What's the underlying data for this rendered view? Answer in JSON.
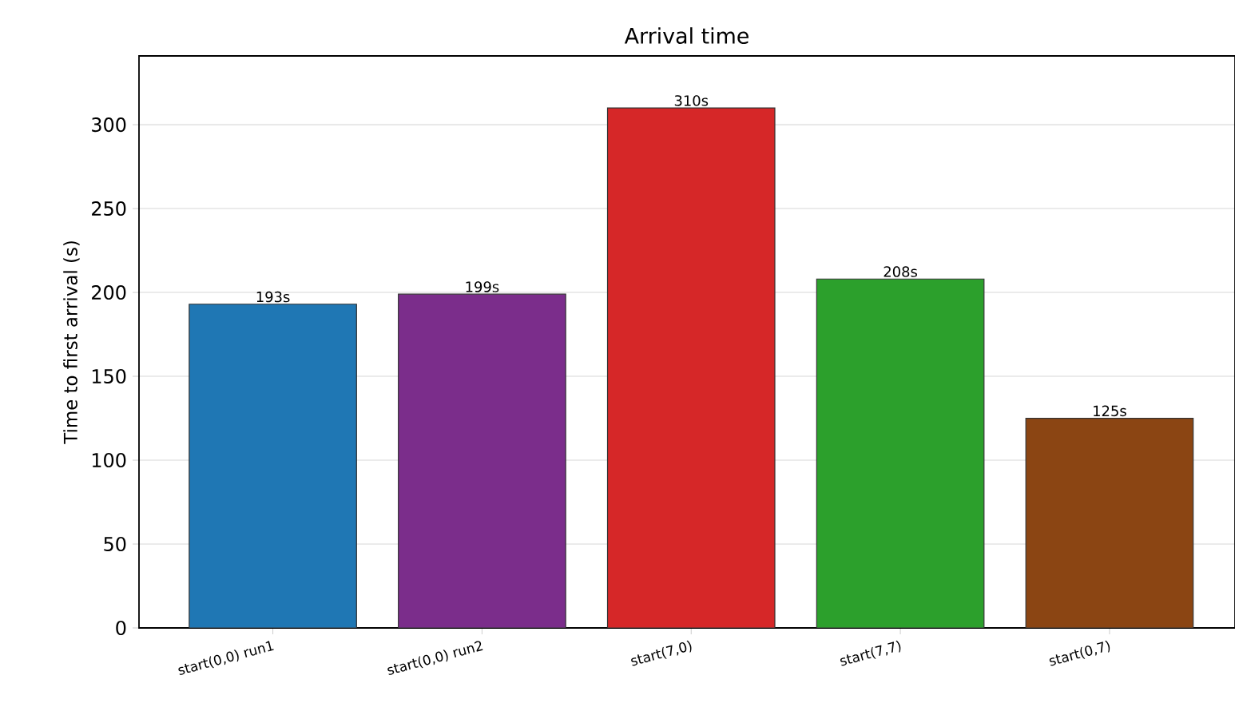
{
  "chart_data": {
    "type": "bar",
    "title": "Arrival time",
    "ylabel": "Time to first arrival (s)",
    "categories": [
      "start(0,0) run1",
      "start(0,0) run2",
      "start(7,0)",
      "start(7,7)",
      "start(0,7)"
    ],
    "values": [
      193,
      199,
      310,
      208,
      125
    ],
    "colors": [
      "#1f77b4",
      "#7b2d8b",
      "#d62728",
      "#2ca02c",
      "#8b4513"
    ],
    "value_labels": [
      "193s",
      "199s",
      "310s",
      "208s",
      "125s"
    ],
    "ylim": [
      0,
      341
    ],
    "yticks": [
      0,
      50,
      100,
      150,
      200,
      250,
      300
    ],
    "grid": "y"
  }
}
